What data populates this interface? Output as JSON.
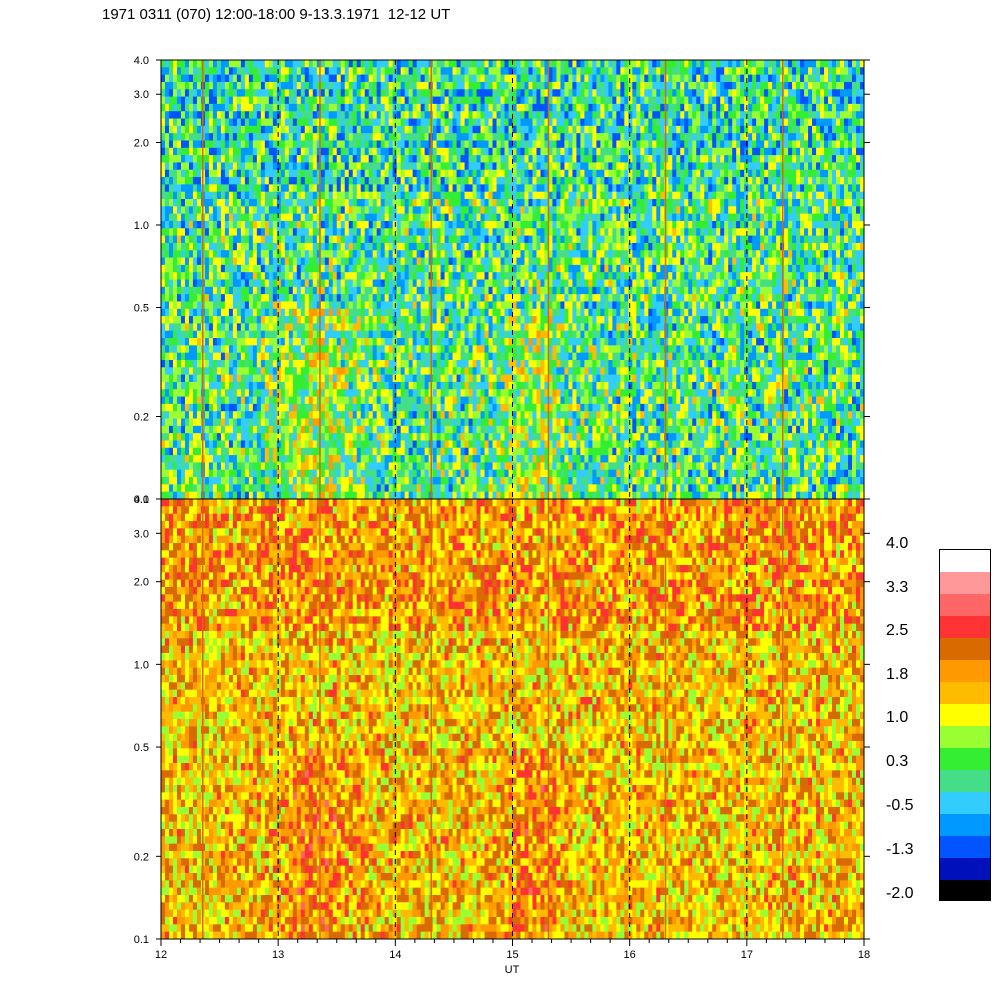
{
  "title": "1971 0311 (070) 12:00-18:00 9-13.3.1971  12-12 UT",
  "chart_data": [
    {
      "type": "heatmap",
      "panel": "top",
      "x": [
        12,
        13,
        14,
        15,
        16,
        17,
        18
      ],
      "x_tick_labels": [
        "12",
        "13",
        "14",
        "15",
        "16",
        "17",
        "18"
      ],
      "xlim": [
        12,
        18
      ],
      "y_tick_values": [
        0.1,
        0.2,
        0.5,
        1.0,
        2.0,
        3.0,
        4.0
      ],
      "y_tick_labels": [
        "0.1",
        "0.2",
        "0.5",
        "1.0",
        "2.0",
        "3.0",
        "4.0"
      ],
      "ylim": [
        0.1,
        4.0
      ],
      "y_scale": "log",
      "vertical_dashed_lines_at": [
        13,
        14,
        15,
        16,
        17
      ],
      "typical_level_range": [
        -0.5,
        1.0
      ]
    },
    {
      "type": "heatmap",
      "panel": "bottom",
      "x": [
        12,
        13,
        14,
        15,
        16,
        17,
        18
      ],
      "x_tick_labels": [
        "12",
        "13",
        "14",
        "15",
        "16",
        "17",
        "18"
      ],
      "xlim": [
        12,
        18
      ],
      "y_tick_values": [
        0.1,
        0.2,
        0.5,
        1.0,
        2.0,
        3.0,
        4.0
      ],
      "y_tick_labels": [
        "0.1",
        "0.2",
        "0.5",
        "1.0",
        "2.0",
        "3.0",
        "4.0"
      ],
      "ylim": [
        0.1,
        4.0
      ],
      "y_scale": "log",
      "xlabel": "UT",
      "vertical_dashed_lines_at": [
        13,
        14,
        15,
        16,
        17
      ],
      "typical_level_range": [
        1.0,
        2.2
      ]
    }
  ],
  "colorbar": {
    "labels": [
      "4.0",
      "3.3",
      "2.5",
      "1.8",
      "1.0",
      "0.3",
      "-0.5",
      "-1.3",
      "-2.0"
    ],
    "colors_top_to_bottom": [
      "#ffffff",
      "#ff9999",
      "#ff6666",
      "#ff3333",
      "#d86a00",
      "#ff9900",
      "#ffbb00",
      "#ffff00",
      "#99ff33",
      "#33ee33",
      "#44dd88",
      "#33ccff",
      "#0099ff",
      "#0055ff",
      "#0011bb",
      "#000000"
    ]
  }
}
